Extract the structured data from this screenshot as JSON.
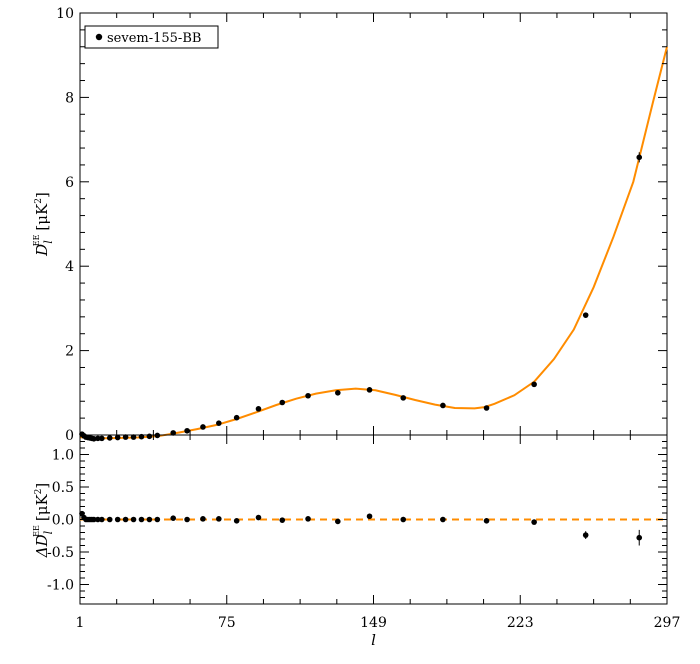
{
  "chart_data": [
    {
      "type": "scatter",
      "panel": "top",
      "ylabel": "D_l^EE [μK^2]",
      "ylabel_parts": {
        "main": "D",
        "sub": "l",
        "sup": "EE",
        "unit_open": "[μK",
        "unit_sup": "2",
        "unit_close": "]"
      },
      "xlabel": "",
      "xlim": [
        1,
        297
      ],
      "ylim": [
        0,
        10
      ],
      "x_tick_labels": [],
      "y_ticks": [
        0,
        2,
        4,
        6,
        8,
        10
      ],
      "y_tick_labels": [
        "0",
        "2",
        "4",
        "6",
        "8",
        "10"
      ],
      "legend": {
        "label": "sevem-155-BB",
        "placement": "top-left"
      },
      "series": [
        {
          "name": "sevem-155-BB",
          "kind": "points",
          "color": "#000000",
          "x": [
            2,
            3,
            4,
            5,
            6,
            7,
            8,
            10,
            12,
            16,
            20,
            24,
            28,
            32,
            36,
            40,
            48,
            55,
            63,
            71,
            80,
            91,
            103,
            116,
            131,
            147,
            164,
            184,
            206,
            230,
            256,
            283
          ],
          "y": [
            0.02,
            -0.02,
            -0.05,
            -0.06,
            -0.07,
            -0.08,
            -0.09,
            -0.08,
            -0.08,
            -0.07,
            -0.06,
            -0.05,
            -0.05,
            -0.04,
            -0.03,
            -0.01,
            0.05,
            0.1,
            0.19,
            0.28,
            0.41,
            0.62,
            0.77,
            0.93,
            1.0,
            1.07,
            0.88,
            0.7,
            0.64,
            1.2,
            2.84,
            6.58
          ],
          "yerr": [
            0.03,
            0.02,
            0.02,
            0.02,
            0.02,
            0.02,
            0.02,
            0.02,
            0.02,
            0.02,
            0.02,
            0.02,
            0.02,
            0.02,
            0.02,
            0.02,
            0.02,
            0.02,
            0.02,
            0.02,
            0.02,
            0.03,
            0.03,
            0.03,
            0.03,
            0.04,
            0.04,
            0.04,
            0.04,
            0.04,
            0.06,
            0.12
          ]
        },
        {
          "name": "model",
          "kind": "line",
          "color": "#ff8c00",
          "x": [
            1,
            5,
            10,
            20,
            30,
            40,
            50,
            60,
            70,
            80,
            90,
            100,
            110,
            120,
            130,
            140,
            150,
            160,
            170,
            180,
            190,
            200,
            205,
            210,
            220,
            230,
            240,
            250,
            260,
            270,
            280,
            290,
            297
          ],
          "y": [
            -0.05,
            -0.07,
            -0.08,
            -0.07,
            -0.06,
            -0.03,
            0.05,
            0.14,
            0.24,
            0.38,
            0.54,
            0.71,
            0.86,
            0.98,
            1.06,
            1.1,
            1.06,
            0.95,
            0.83,
            0.72,
            0.64,
            0.63,
            0.66,
            0.74,
            0.94,
            1.26,
            1.8,
            2.5,
            3.5,
            4.7,
            6.0,
            7.9,
            9.2
          ]
        }
      ]
    },
    {
      "type": "scatter",
      "panel": "bottom",
      "ylabel": "ΔD_l^EE [μK^2]",
      "ylabel_parts": {
        "main": "ΔD",
        "sub": "l",
        "sup": "EE",
        "unit_open": "[μK",
        "unit_sup": "2",
        "unit_close": "]"
      },
      "xlabel": "l",
      "xlim": [
        1,
        297
      ],
      "ylim": [
        -1.3,
        1.3
      ],
      "x_ticks": [
        1,
        75,
        149,
        223,
        297
      ],
      "x_tick_labels": [
        "1",
        "75",
        "149",
        "223",
        "297"
      ],
      "y_ticks": [
        -1.0,
        -0.5,
        0.0,
        0.5,
        1.0
      ],
      "y_tick_labels": [
        "-1.0",
        "-0.5",
        "0.0",
        "0.5",
        "1.0"
      ],
      "series": [
        {
          "name": "residual",
          "kind": "points",
          "color": "#000000",
          "x": [
            2,
            3,
            4,
            5,
            6,
            7,
            8,
            10,
            12,
            16,
            20,
            24,
            28,
            32,
            36,
            40,
            48,
            55,
            63,
            71,
            80,
            91,
            103,
            116,
            131,
            147,
            164,
            184,
            206,
            230,
            256,
            283
          ],
          "y": [
            0.09,
            0.03,
            0.0,
            0.0,
            0.0,
            0.0,
            0.0,
            0.0,
            0.0,
            0.0,
            0.0,
            0.0,
            0.0,
            0.0,
            0.0,
            0.0,
            0.02,
            0.0,
            0.01,
            0.01,
            -0.02,
            0.03,
            -0.01,
            0.01,
            -0.03,
            0.05,
            0.0,
            0.0,
            -0.02,
            -0.04,
            -0.24,
            -0.28
          ],
          "yerr": [
            0.03,
            0.02,
            0.02,
            0.02,
            0.02,
            0.02,
            0.02,
            0.02,
            0.02,
            0.02,
            0.02,
            0.02,
            0.02,
            0.02,
            0.02,
            0.02,
            0.02,
            0.02,
            0.02,
            0.02,
            0.02,
            0.03,
            0.03,
            0.03,
            0.03,
            0.04,
            0.04,
            0.04,
            0.04,
            0.04,
            0.06,
            0.12
          ]
        },
        {
          "name": "zero-line",
          "kind": "dashed-line",
          "color": "#ff8c00",
          "x": [
            1,
            297
          ],
          "y": [
            0,
            0
          ]
        }
      ]
    }
  ]
}
